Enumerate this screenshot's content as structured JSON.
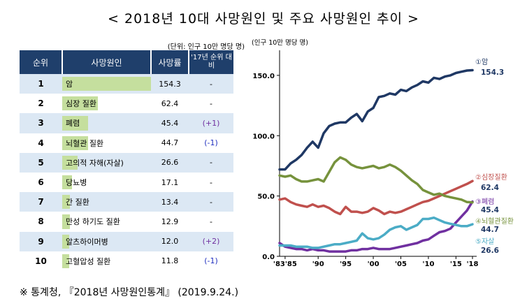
{
  "title": "< 2018년  10대  사망원인 및 주요 사망원인 추이 >",
  "table": {
    "unit_note": "(단위: 인구 10만 명당 명)",
    "headers": {
      "rank": "순위",
      "cause": "사망원인",
      "rate": "사망률",
      "change": "'17년 순위 대비"
    },
    "rows": [
      {
        "rank": "1",
        "cause": "암",
        "rate": "154.3",
        "change": "-",
        "value": 154.3
      },
      {
        "rank": "2",
        "cause": "심장 질환",
        "rate": "62.4",
        "change": "-",
        "value": 62.4
      },
      {
        "rank": "3",
        "cause": "폐렴",
        "rate": "45.4",
        "change": "(+1)",
        "value": 45.4
      },
      {
        "rank": "4",
        "cause": "뇌혈관 질환",
        "rate": "44.7",
        "change": "(-1)",
        "value": 44.7
      },
      {
        "rank": "5",
        "cause": "고의적 자해(자살)",
        "rate": "26.6",
        "change": "-",
        "value": 26.6
      },
      {
        "rank": "6",
        "cause": "당뇨병",
        "rate": "17.1",
        "change": "-",
        "value": 17.1
      },
      {
        "rank": "7",
        "cause": "간 질환",
        "rate": "13.4",
        "change": "-",
        "value": 13.4
      },
      {
        "rank": "8",
        "cause": "만성 하기도 질환",
        "rate": "12.9",
        "change": "-",
        "value": 12.9
      },
      {
        "rank": "9",
        "cause": "알츠하이머병",
        "rate": "12.0",
        "change": "(+2)",
        "value": 12.0
      },
      {
        "rank": "10",
        "cause": "고혈압성 질환",
        "rate": "11.8",
        "change": "(-1)",
        "value": 11.8
      }
    ],
    "bar_color": "#c5df9e",
    "header_color": "#1f3f6b",
    "change_up_color": "#7030a0",
    "change_down_color": "#1f2fbf"
  },
  "footnote": "※  통계청, 『2018년 사망원인통계』 (2019.9.24.)",
  "chart_data": {
    "type": "line",
    "ylabel": "(인구 10만 명당 명)",
    "ylim": [
      0,
      165
    ],
    "yticks": [
      "0.0",
      "50.0",
      "100.0",
      "150.0"
    ],
    "ytick_values": [
      0,
      50,
      100,
      150
    ],
    "xtick_labels": [
      "'83'85",
      "'90",
      "'95",
      "'00",
      "'05",
      "'10",
      "'15",
      "'18"
    ],
    "xtick_values": [
      1984,
      1990,
      1995,
      2000,
      2005,
      2010,
      2015,
      2018
    ],
    "xlim": [
      1983,
      2018
    ],
    "grid": false,
    "x": [
      1983,
      1984,
      1985,
      1986,
      1987,
      1988,
      1989,
      1990,
      1991,
      1992,
      1993,
      1994,
      1995,
      1996,
      1997,
      1998,
      1999,
      2000,
      2001,
      2002,
      2003,
      2004,
      2005,
      2006,
      2007,
      2008,
      2009,
      2010,
      2011,
      2012,
      2013,
      2014,
      2015,
      2016,
      2017,
      2018
    ],
    "series": [
      {
        "name": "①암",
        "label_value": "154.3",
        "color": "#1f3864",
        "values": [
          72,
          72,
          77,
          80,
          84,
          90,
          95,
          90,
          102,
          108,
          110,
          111,
          111,
          115,
          118,
          112,
          120,
          123,
          132,
          133,
          135,
          134,
          138,
          137,
          140,
          142,
          145,
          144,
          148,
          147,
          149,
          150,
          152,
          153,
          154,
          154.3
        ]
      },
      {
        "name": "②심장질환",
        "label_value": "62.4",
        "color": "#c0504d",
        "values": [
          47,
          48,
          45,
          43,
          42,
          41,
          43,
          41,
          42,
          40,
          37,
          35,
          41,
          37,
          37,
          36,
          37,
          40,
          38,
          35,
          37,
          36,
          37,
          39,
          41,
          43,
          45,
          46,
          48,
          50,
          52,
          54,
          56,
          58,
          60,
          62.4
        ]
      },
      {
        "name": "③폐렴",
        "label_value": "45.4",
        "color": "#7030a0",
        "values": [
          11,
          8,
          7,
          6,
          6,
          5,
          6,
          5,
          5,
          4,
          4,
          4,
          4,
          5,
          5,
          6,
          6,
          7,
          6,
          6,
          6,
          7,
          8,
          9,
          10,
          11,
          13,
          14,
          17,
          20,
          21,
          23,
          28,
          33,
          38,
          45.4
        ]
      },
      {
        "name": "④뇌혈관질환",
        "label_value": "44.7",
        "color": "#76923c",
        "values": [
          67,
          66,
          67,
          64,
          62,
          62,
          63,
          64,
          62,
          70,
          78,
          82,
          80,
          76,
          74,
          73,
          74,
          75,
          73,
          74,
          76,
          74,
          71,
          67,
          63,
          60,
          55,
          53,
          51,
          52,
          50,
          49,
          48,
          47,
          45,
          44.7
        ]
      },
      {
        "name": "⑤자살",
        "label_value": "26.6",
        "color": "#4bacc6",
        "values": [
          9,
          9,
          9,
          8,
          8,
          8,
          7,
          7,
          8,
          9,
          10,
          10,
          11,
          12,
          13,
          19,
          15,
          14,
          15,
          18,
          22,
          24,
          25,
          22,
          24,
          26,
          31,
          31,
          32,
          30,
          28,
          27,
          26,
          25,
          25,
          26.6
        ]
      }
    ],
    "axis_color": "#000000"
  }
}
